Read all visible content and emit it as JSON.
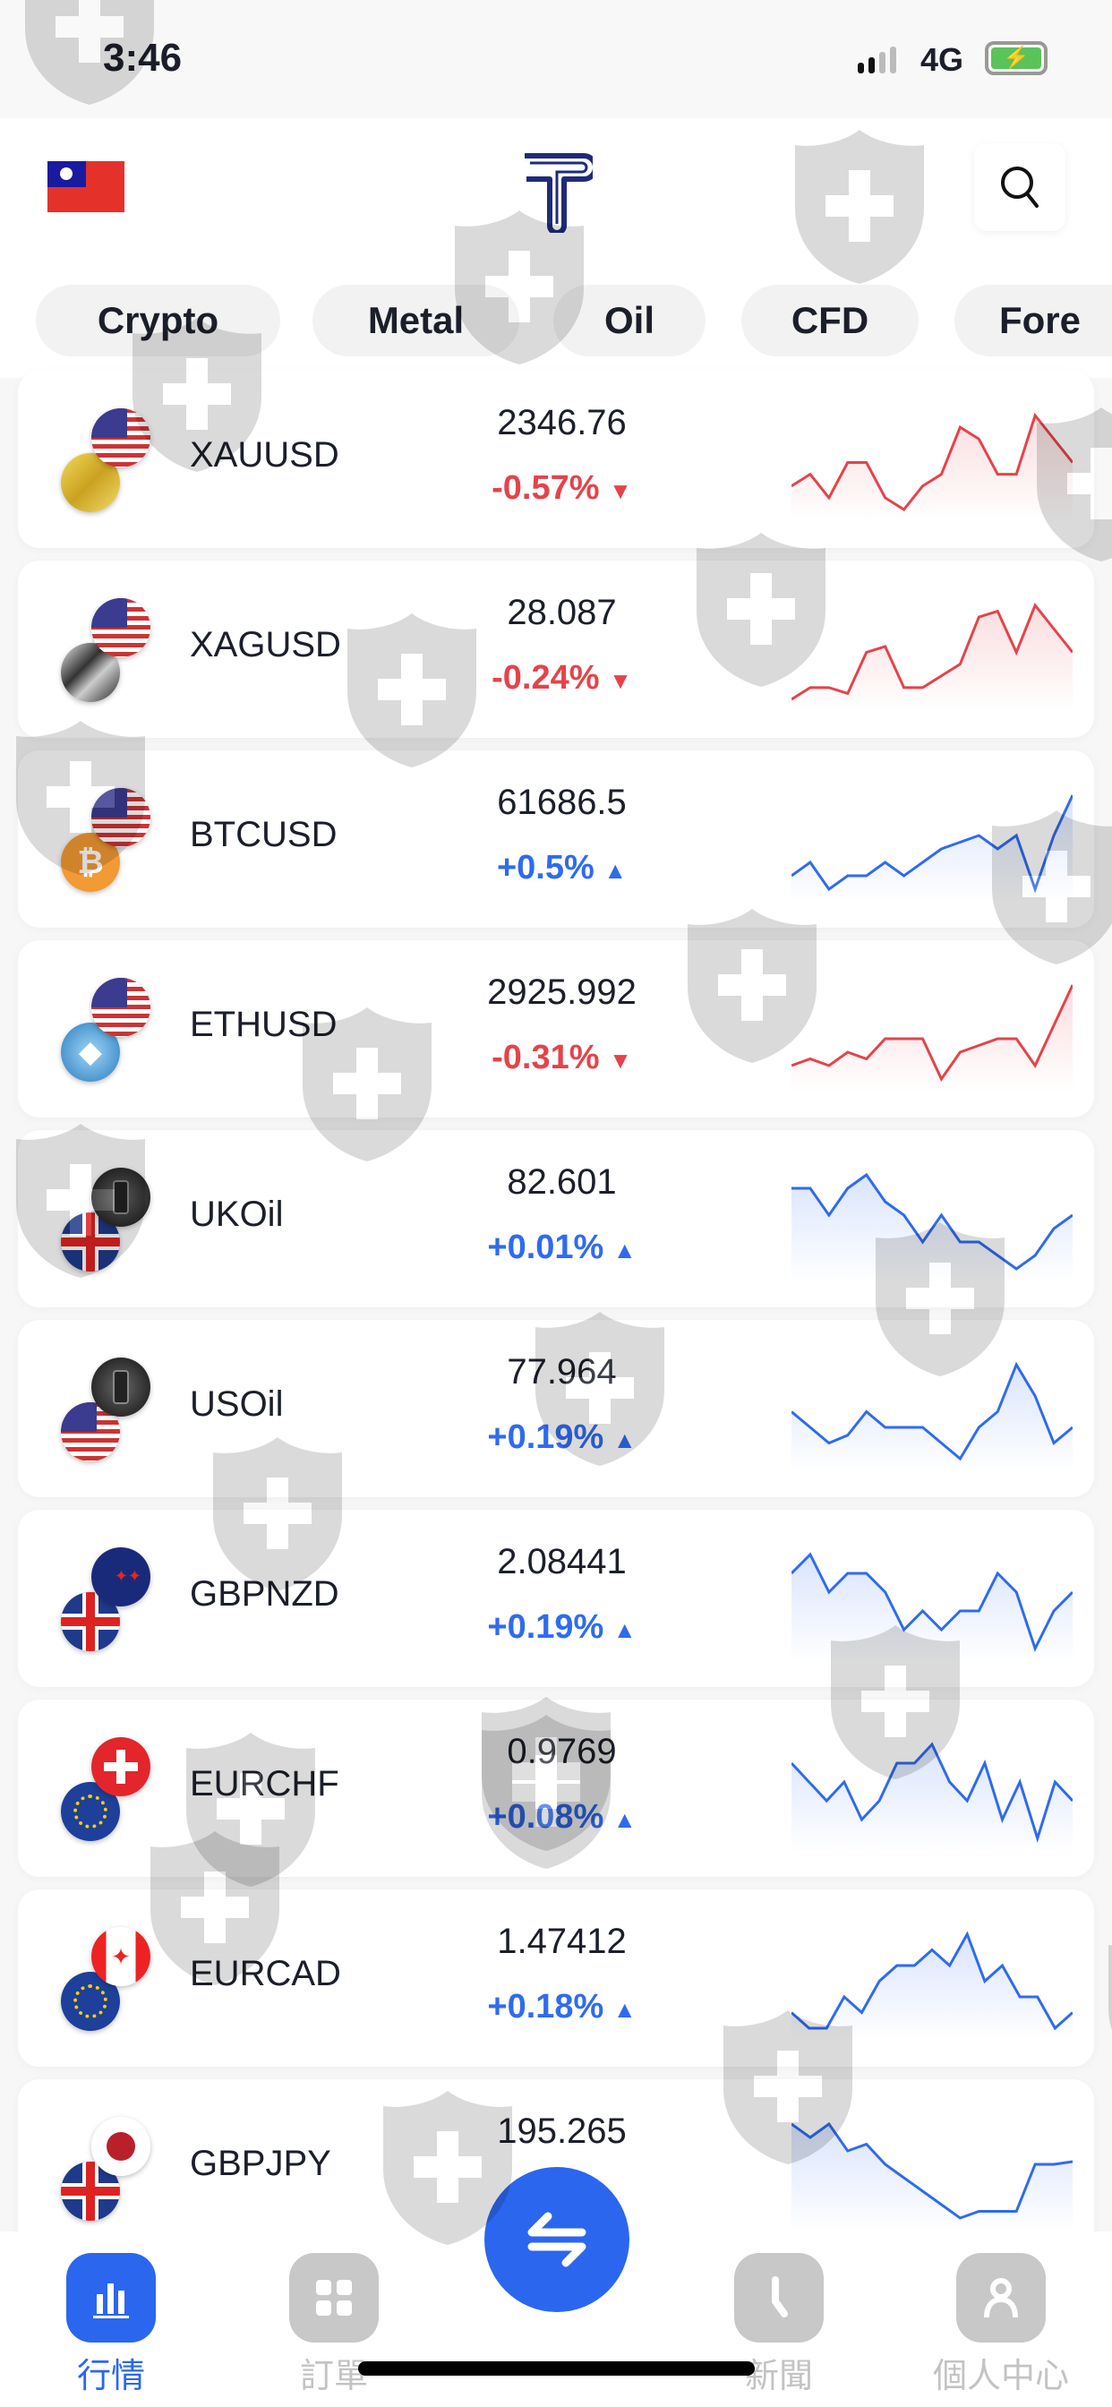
{
  "status": {
    "time": "3:46",
    "network": "4G"
  },
  "tabs": [
    {
      "label": "Crypto"
    },
    {
      "label": "Metal"
    },
    {
      "label": "Oil"
    },
    {
      "label": "CFD"
    },
    {
      "label": "Fore"
    }
  ],
  "colors": {
    "up": "#2f6bef",
    "down": "#e5434a",
    "accent": "#2b66ef"
  },
  "rows": [
    {
      "symbol": "XAUUSD",
      "price": "2346.76",
      "change": "-0.57%",
      "dir": "down",
      "top": "us",
      "bottom": "gold",
      "spark": [
        3,
        4,
        2,
        5,
        5,
        2,
        1,
        3,
        4,
        8,
        7,
        4,
        4,
        9,
        7,
        5
      ]
    },
    {
      "symbol": "XAGUSD",
      "price": "28.087",
      "change": "-0.24%",
      "dir": "down",
      "top": "us",
      "bottom": "silver",
      "spark": [
        1,
        2,
        2,
        1.5,
        5,
        5.5,
        2,
        2,
        3,
        4,
        8,
        8.5,
        5,
        9,
        7,
        5
      ]
    },
    {
      "symbol": "BTCUSD",
      "price": "61686.5",
      "change": "+0.5%",
      "dir": "up",
      "top": "us",
      "bottom": "btc",
      "spark": [
        4,
        5,
        3,
        4,
        4,
        5,
        4,
        5,
        6,
        6.5,
        7,
        6,
        7,
        3,
        7,
        10
      ]
    },
    {
      "symbol": "ETHUSD",
      "price": "2925.992",
      "change": "-0.31%",
      "dir": "down",
      "top": "us",
      "bottom": "eth",
      "spark": [
        3,
        3.5,
        3,
        4,
        3.5,
        5,
        5,
        5,
        2,
        4,
        4.5,
        5,
        5,
        3,
        6,
        9
      ]
    },
    {
      "symbol": "UKOil",
      "price": "82.601",
      "change": "+0.01%",
      "dir": "up",
      "top": "oil",
      "bottom": "uk",
      "spark": [
        8,
        8,
        6,
        8,
        9,
        7,
        6,
        4,
        6,
        4,
        4,
        3,
        2,
        3,
        5,
        6
      ]
    },
    {
      "symbol": "USOil",
      "price": "77.964",
      "change": "+0.19%",
      "dir": "up",
      "top": "oil",
      "bottom": "us",
      "spark": [
        6,
        5,
        4,
        4.5,
        6,
        5,
        5,
        5,
        4,
        3,
        5,
        6,
        9,
        7,
        4,
        5
      ]
    },
    {
      "symbol": "GBPNZD",
      "price": "2.08441",
      "change": "+0.19%",
      "dir": "up",
      "top": "nz",
      "bottom": "uk",
      "spark": [
        7,
        8,
        6,
        7,
        7,
        6,
        4,
        5,
        4,
        5,
        5,
        7,
        6,
        3,
        5,
        6
      ]
    },
    {
      "symbol": "EURCHF",
      "price": "0.9769",
      "change": "+0.08%",
      "dir": "up",
      "top": "ch",
      "bottom": "eu",
      "spark": [
        6,
        5,
        4,
        5,
        3,
        4,
        6,
        6,
        7,
        5,
        4,
        6,
        3,
        5,
        2,
        5,
        4
      ]
    },
    {
      "symbol": "EURCAD",
      "price": "1.47412",
      "change": "+0.18%",
      "dir": "up",
      "top": "ca",
      "bottom": "eu",
      "spark": [
        3,
        2,
        2,
        4,
        3,
        5,
        6,
        6,
        7,
        6,
        8,
        5,
        6,
        4,
        4,
        2,
        3
      ]
    },
    {
      "symbol": "GBPJPY",
      "price": "195.265",
      "change": "+",
      "dir": "up",
      "top": "jp",
      "bottom": "uk",
      "spark": [
        9,
        8,
        9,
        7,
        7.5,
        6,
        5,
        4,
        3,
        2,
        2.5,
        2.5,
        2.5,
        6,
        6,
        6.2
      ]
    }
  ],
  "nav": [
    {
      "label": "行情",
      "icon": "chart-bar-icon",
      "active": true
    },
    {
      "label": "訂單",
      "icon": "grid-icon"
    },
    {
      "label": "新聞",
      "icon": "clock-icon"
    },
    {
      "label": "個人中心",
      "icon": "user-icon"
    }
  ]
}
